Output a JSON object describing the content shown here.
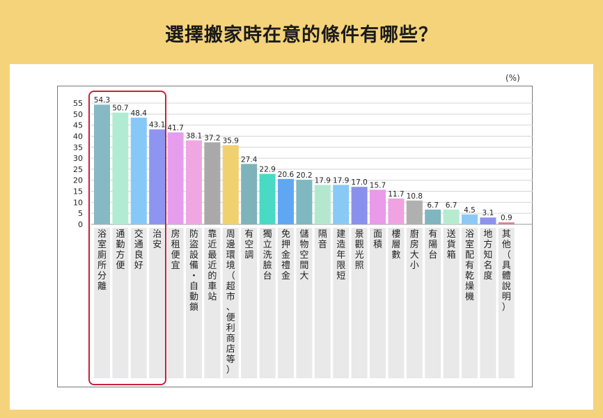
{
  "title": "選擇搬家時在意的條件有哪些？",
  "unit": "(%)",
  "chart_data": {
    "type": "bar",
    "title": "選擇搬家時在意的條件有哪些？",
    "ylabel": "(%)",
    "ylim": [
      0,
      55
    ],
    "yticks": [
      0,
      5,
      10,
      15,
      20,
      25,
      30,
      35,
      40,
      45,
      50,
      55
    ],
    "grid": true,
    "highlight_first_n": 4,
    "categories": [
      "浴室廁所分離",
      "通勤方便",
      "交通良好",
      "治安",
      "房租便宜",
      "防盜設備・自動鎖",
      "靠近最近的車站",
      "周邊環境（超市、便利商店等）",
      "有空調",
      "獨立洗臉台",
      "免押金禮金",
      "儲物空間大",
      "隔音",
      "建造年限短",
      "景觀光照",
      "面積",
      "樓層數",
      "廚房大小",
      "有陽台",
      "送貨箱",
      "浴室配有乾燥機",
      "地方知名度",
      "其他（具體說明）"
    ],
    "values": [
      54.3,
      50.7,
      48.4,
      43.1,
      41.7,
      38.1,
      37.2,
      35.9,
      27.4,
      22.9,
      20.6,
      20.2,
      17.9,
      17.9,
      17.0,
      15.7,
      11.7,
      10.8,
      6.7,
      6.7,
      4.5,
      3.1,
      0.9
    ],
    "value_labels": [
      "54.3",
      "50.7",
      "48.4",
      "43.1",
      "41.7",
      "38.1",
      "37.2",
      "35.9",
      "27.4",
      "22.9",
      "20.6",
      "20.2",
      "17.9",
      "17.9",
      "17.0",
      "15.7",
      "11.7",
      "10.8",
      "6.7",
      "6.7",
      "4.5",
      "3.1",
      "0.9"
    ],
    "colors": [
      "#86b9c3",
      "#b1ecd2",
      "#86c8f7",
      "#8e95f0",
      "#e79ded",
      "#f1a6e4",
      "#a9a9a9",
      "#f0d170",
      "#7eb3bb",
      "#4ad9c4",
      "#5fa7f2",
      "#7fb8c0",
      "#b3e8cf",
      "#88caf5",
      "#8a90ee",
      "#e99ae8",
      "#f0a2e2",
      "#b0b0b0",
      "#7fb6bf",
      "#b6ebd0",
      "#8ccaf5",
      "#8c92ee",
      "#e07f92"
    ]
  }
}
